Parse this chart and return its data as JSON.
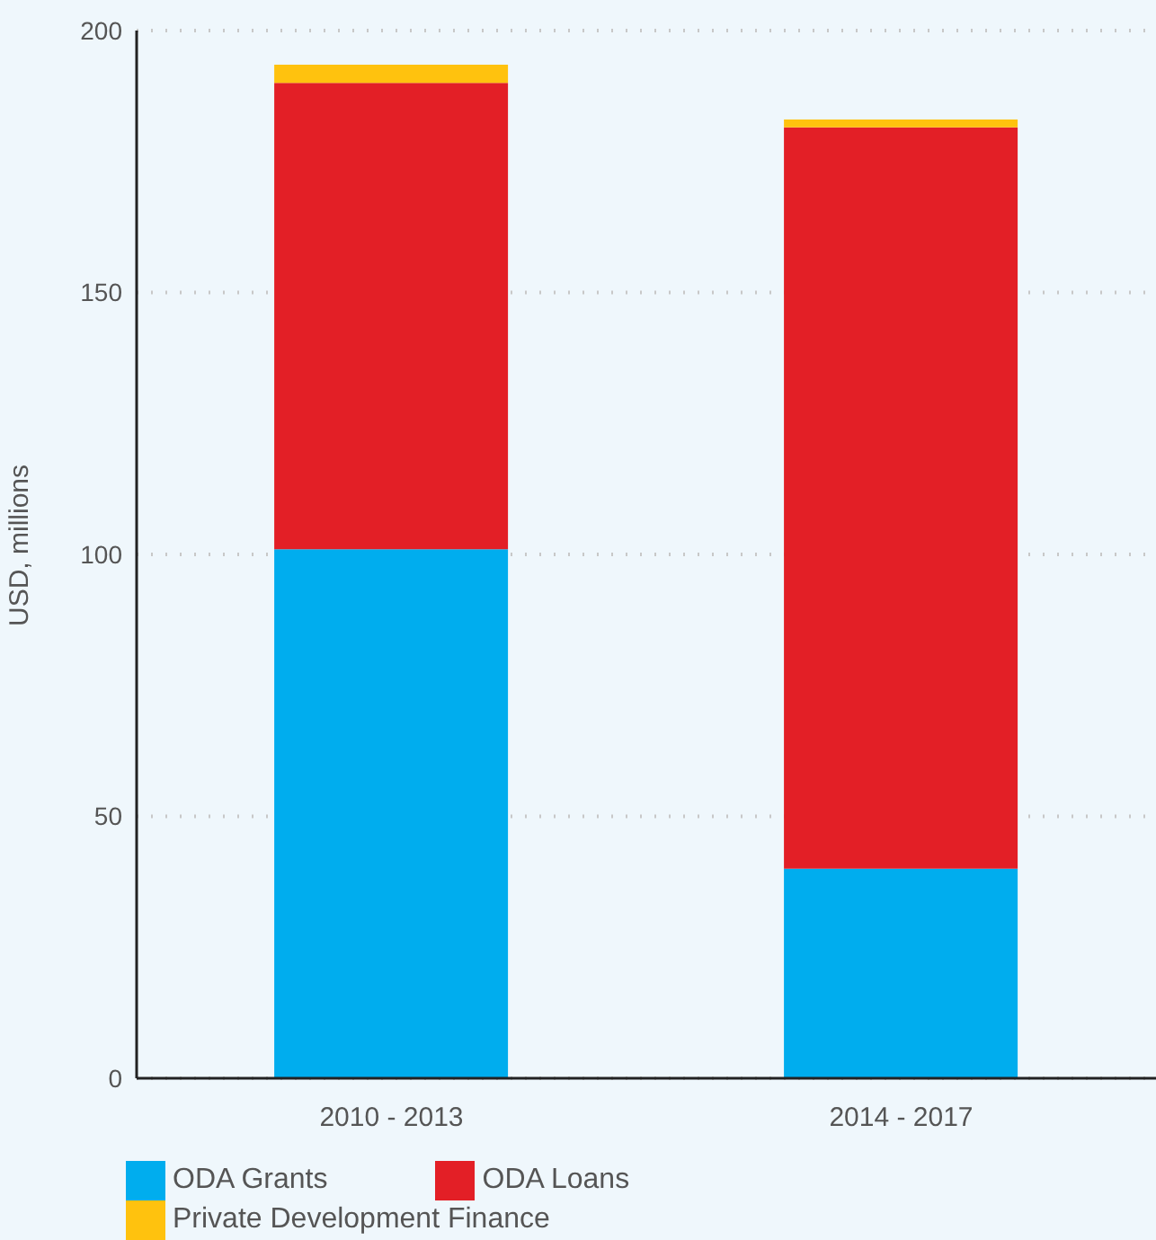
{
  "chart_data": {
    "type": "bar",
    "stacked": true,
    "ylabel": "USD, millions",
    "categories": [
      "2010 - 2013",
      "2014 - 2017"
    ],
    "series": [
      {
        "name": "ODA Grants",
        "color": "#00adee",
        "values": [
          101,
          40
        ]
      },
      {
        "name": "ODA Loans",
        "color": "#e31f26",
        "values": [
          89,
          141.5
        ]
      },
      {
        "name": "Private Development Finance",
        "color": "#ffc20e",
        "values": [
          3.5,
          1.5
        ]
      }
    ],
    "ylim": [
      0,
      200
    ],
    "yticks": [
      0,
      50,
      100,
      150,
      200
    ],
    "grid": "y",
    "legend": "bottom"
  }
}
